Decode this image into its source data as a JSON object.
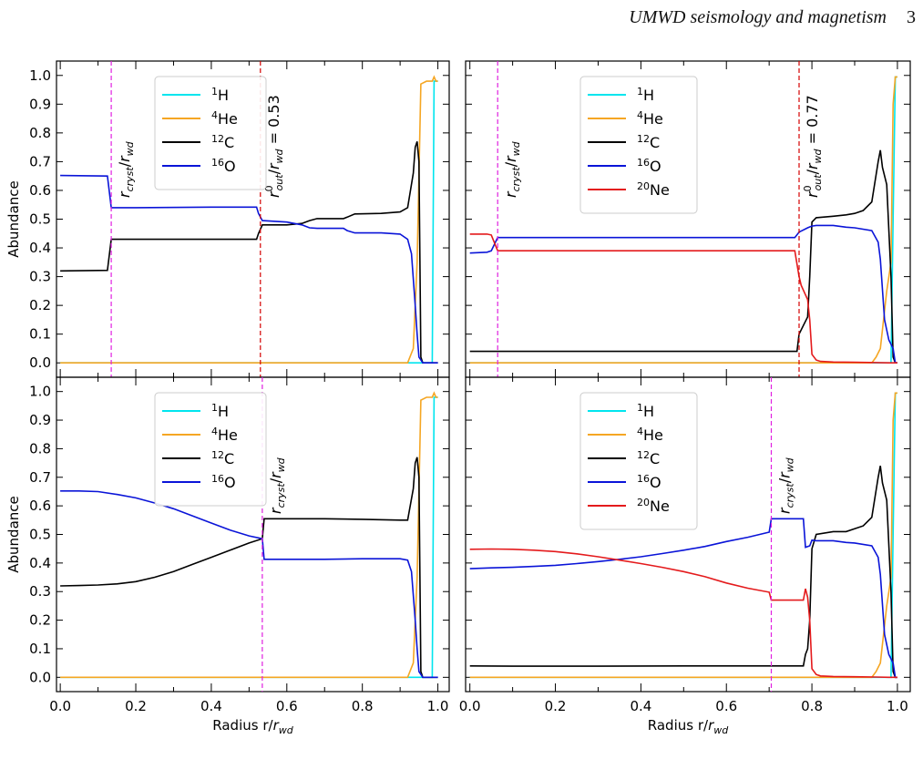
{
  "header": {
    "title": "UMWD seismology and magnetism",
    "page": "3"
  },
  "colors": {
    "H": "#00e5ee",
    "He": "#f5a623",
    "C": "#000000",
    "O": "#0a14d8",
    "Ne": "#e41a1c",
    "rcryst": "#e020e0",
    "rout": "#d40000"
  },
  "chart_data": [
    {
      "type": "line",
      "panel": "top-left",
      "xlabel": "",
      "ylabel": "Abundance",
      "xlim": [
        -0.01,
        1.03
      ],
      "ylim": [
        -0.05,
        1.05
      ],
      "yticks": [
        "0.0",
        "0.1",
        "0.2",
        "0.3",
        "0.4",
        "0.5",
        "0.6",
        "0.7",
        "0.8",
        "0.9",
        "1.0"
      ],
      "xticks": [],
      "legend": [
        "1H",
        "4He",
        "12C",
        "16O"
      ],
      "vlines": [
        {
          "x": 0.135,
          "color": "rcryst",
          "label_sub": "cryst"
        },
        {
          "x": 0.53,
          "color": "rout",
          "label_kind": "rout",
          "value": "0.53"
        }
      ],
      "series": [
        {
          "name": "1H",
          "color": "H",
          "x": [
            0,
            0.96,
            0.975,
            0.978,
            0.985,
            0.99,
            1.0
          ],
          "y": [
            0,
            0,
            0,
            0,
            0,
            0.98,
            0.98
          ]
        },
        {
          "name": "4He",
          "color": "He",
          "x": [
            0,
            0.92,
            0.935,
            0.945,
            0.955,
            0.97,
            0.985,
            0.99,
            0.995,
            1.0
          ],
          "y": [
            0,
            0,
            0.05,
            0.35,
            0.97,
            0.98,
            0.98,
            0.995,
            0.98,
            0.98
          ]
        },
        {
          "name": "12C",
          "color": "C",
          "x": [
            0,
            0.125,
            0.135,
            0.2,
            0.4,
            0.52,
            0.525,
            0.535,
            0.6,
            0.64,
            0.66,
            0.68,
            0.75,
            0.76,
            0.78,
            0.85,
            0.9,
            0.92,
            0.935,
            0.94,
            0.945,
            0.95,
            0.955,
            0.96,
            0.97,
            1.0
          ],
          "y": [
            0.32,
            0.322,
            0.43,
            0.43,
            0.43,
            0.43,
            0.45,
            0.48,
            0.48,
            0.485,
            0.495,
            0.502,
            0.502,
            0.507,
            0.518,
            0.52,
            0.525,
            0.54,
            0.66,
            0.75,
            0.77,
            0.7,
            0.02,
            0,
            0,
            0
          ]
        },
        {
          "name": "16O",
          "color": "O",
          "x": [
            0,
            0.125,
            0.135,
            0.2,
            0.4,
            0.52,
            0.525,
            0.535,
            0.6,
            0.64,
            0.66,
            0.68,
            0.75,
            0.76,
            0.78,
            0.85,
            0.9,
            0.92,
            0.93,
            0.94,
            0.945,
            0.95,
            0.96,
            1.0
          ],
          "y": [
            0.652,
            0.65,
            0.54,
            0.54,
            0.542,
            0.542,
            0.52,
            0.495,
            0.49,
            0.48,
            0.47,
            0.468,
            0.468,
            0.46,
            0.452,
            0.452,
            0.448,
            0.43,
            0.38,
            0.2,
            0.1,
            0.02,
            0,
            0
          ]
        }
      ]
    },
    {
      "type": "line",
      "panel": "top-right",
      "xlabel": "",
      "ylabel": "",
      "xlim": [
        -0.01,
        1.03
      ],
      "ylim": [
        -0.05,
        1.05
      ],
      "yticks": [],
      "xticks": [],
      "legend": [
        "1H",
        "4He",
        "12C",
        "16O",
        "20Ne"
      ],
      "vlines": [
        {
          "x": 0.065,
          "color": "rcryst",
          "label_sub": "cryst"
        },
        {
          "x": 0.77,
          "color": "rout",
          "label_kind": "rout",
          "value": "0.77"
        }
      ],
      "series": [
        {
          "name": "1H",
          "color": "H",
          "x": [
            0,
            0.985,
            0.99,
            0.995,
            1.0
          ],
          "y": [
            0,
            0,
            0.5,
            0.995,
            0.995
          ]
        },
        {
          "name": "4He",
          "color": "He",
          "x": [
            0,
            0.94,
            0.95,
            0.96,
            0.975,
            0.985,
            0.99,
            0.995,
            1.0
          ],
          "y": [
            0,
            0,
            0.02,
            0.05,
            0.25,
            0.35,
            0.9,
            0.995,
            0.995
          ]
        },
        {
          "name": "12C",
          "color": "C",
          "x": [
            0,
            0.765,
            0.77,
            0.78,
            0.79,
            0.795,
            0.8,
            0.81,
            0.85,
            0.88,
            0.9,
            0.92,
            0.94,
            0.955,
            0.96,
            0.965,
            0.975,
            0.985,
            0.99,
            0.995,
            1.0
          ],
          "y": [
            0.04,
            0.04,
            0.1,
            0.13,
            0.16,
            0.3,
            0.49,
            0.505,
            0.51,
            0.515,
            0.52,
            0.53,
            0.56,
            0.7,
            0.74,
            0.68,
            0.62,
            0.3,
            0.02,
            0,
            0
          ]
        },
        {
          "name": "16O",
          "color": "O",
          "x": [
            0,
            0.04,
            0.05,
            0.065,
            0.2,
            0.4,
            0.6,
            0.76,
            0.77,
            0.79,
            0.8,
            0.81,
            0.85,
            0.88,
            0.9,
            0.94,
            0.955,
            0.96,
            0.97,
            0.98,
            0.99,
            0.995,
            1.0
          ],
          "y": [
            0.382,
            0.385,
            0.39,
            0.436,
            0.436,
            0.436,
            0.436,
            0.436,
            0.455,
            0.47,
            0.476,
            0.478,
            0.478,
            0.472,
            0.47,
            0.46,
            0.42,
            0.36,
            0.15,
            0.08,
            0.05,
            0,
            0
          ]
        },
        {
          "name": "20Ne",
          "color": "Ne",
          "x": [
            0,
            0.04,
            0.05,
            0.065,
            0.2,
            0.4,
            0.6,
            0.76,
            0.77,
            0.775,
            0.79,
            0.795,
            0.8,
            0.81,
            0.82,
            0.85,
            0.9,
            0.95,
            0.98,
            1.0
          ],
          "y": [
            0.448,
            0.448,
            0.445,
            0.39,
            0.39,
            0.39,
            0.39,
            0.39,
            0.3,
            0.27,
            0.22,
            0.15,
            0.03,
            0.01,
            0.005,
            0.003,
            0.002,
            0.001,
            0,
            0
          ]
        }
      ]
    },
    {
      "type": "line",
      "panel": "bottom-left",
      "xlabel": "Radius r/r_wd",
      "ylabel": "Abundance",
      "xlim": [
        -0.01,
        1.03
      ],
      "ylim": [
        -0.05,
        1.05
      ],
      "yticks": [
        "0.0",
        "0.1",
        "0.2",
        "0.3",
        "0.4",
        "0.5",
        "0.6",
        "0.7",
        "0.8",
        "0.9",
        "1.0"
      ],
      "xticks": [
        "0.0",
        "0.2",
        "0.4",
        "0.6",
        "0.8",
        "1.0"
      ],
      "legend": [
        "1H",
        "4He",
        "12C",
        "16O"
      ],
      "vlines": [
        {
          "x": 0.535,
          "color": "rcryst",
          "label_sub": "cryst"
        }
      ],
      "series": [
        {
          "name": "1H",
          "color": "H",
          "x": [
            0,
            0.96,
            0.975,
            0.978,
            0.985,
            0.99,
            1.0
          ],
          "y": [
            0,
            0,
            0,
            0,
            0,
            0.98,
            0.98
          ]
        },
        {
          "name": "4He",
          "color": "He",
          "x": [
            0,
            0.92,
            0.935,
            0.945,
            0.955,
            0.97,
            0.985,
            0.99,
            0.995,
            1.0
          ],
          "y": [
            0,
            0,
            0.05,
            0.35,
            0.97,
            0.98,
            0.98,
            0.995,
            0.98,
            0.98
          ]
        },
        {
          "name": "12C",
          "color": "C",
          "x": [
            0,
            0.05,
            0.1,
            0.15,
            0.2,
            0.25,
            0.3,
            0.35,
            0.4,
            0.45,
            0.5,
            0.535,
            0.54,
            0.6,
            0.7,
            0.8,
            0.9,
            0.92,
            0.935,
            0.94,
            0.945,
            0.95,
            0.955,
            0.96,
            0.97,
            1.0
          ],
          "y": [
            0.32,
            0.321,
            0.323,
            0.327,
            0.335,
            0.35,
            0.37,
            0.395,
            0.42,
            0.445,
            0.47,
            0.485,
            0.555,
            0.555,
            0.555,
            0.553,
            0.55,
            0.55,
            0.66,
            0.75,
            0.77,
            0.7,
            0.02,
            0,
            0,
            0
          ]
        },
        {
          "name": "16O",
          "color": "O",
          "x": [
            0,
            0.05,
            0.1,
            0.15,
            0.2,
            0.25,
            0.3,
            0.35,
            0.4,
            0.45,
            0.5,
            0.535,
            0.54,
            0.6,
            0.7,
            0.8,
            0.9,
            0.92,
            0.93,
            0.94,
            0.945,
            0.95,
            0.96,
            1.0
          ],
          "y": [
            0.652,
            0.652,
            0.65,
            0.64,
            0.628,
            0.61,
            0.59,
            0.565,
            0.54,
            0.515,
            0.495,
            0.485,
            0.413,
            0.413,
            0.413,
            0.415,
            0.415,
            0.41,
            0.37,
            0.2,
            0.1,
            0.02,
            0,
            0
          ]
        }
      ]
    },
    {
      "type": "line",
      "panel": "bottom-right",
      "xlabel": "Radius r/r_wd",
      "ylabel": "",
      "xlim": [
        -0.01,
        1.03
      ],
      "ylim": [
        -0.05,
        1.05
      ],
      "yticks": [],
      "xticks": [
        "0.0",
        "0.2",
        "0.4",
        "0.6",
        "0.8",
        "1.0"
      ],
      "legend": [
        "1H",
        "4He",
        "12C",
        "16O",
        "20Ne"
      ],
      "vlines": [
        {
          "x": 0.705,
          "color": "rcryst",
          "label_sub": "cryst"
        }
      ],
      "series": [
        {
          "name": "1H",
          "color": "H",
          "x": [
            0,
            0.985,
            0.99,
            0.995,
            1.0
          ],
          "y": [
            0,
            0,
            0.5,
            0.995,
            0.995
          ]
        },
        {
          "name": "4He",
          "color": "He",
          "x": [
            0,
            0.94,
            0.95,
            0.96,
            0.975,
            0.985,
            0.99,
            0.995,
            1.0
          ],
          "y": [
            0,
            0,
            0.02,
            0.05,
            0.25,
            0.35,
            0.9,
            0.995,
            0.995
          ]
        },
        {
          "name": "12C",
          "color": "C",
          "x": [
            0,
            0.1,
            0.3,
            0.5,
            0.7,
            0.78,
            0.785,
            0.79,
            0.795,
            0.8,
            0.81,
            0.85,
            0.88,
            0.9,
            0.92,
            0.94,
            0.955,
            0.96,
            0.965,
            0.975,
            0.985,
            0.99,
            0.995,
            1.0
          ],
          "y": [
            0.04,
            0.039,
            0.039,
            0.04,
            0.04,
            0.04,
            0.08,
            0.1,
            0.2,
            0.45,
            0.5,
            0.51,
            0.51,
            0.52,
            0.53,
            0.56,
            0.7,
            0.74,
            0.68,
            0.62,
            0.3,
            0.02,
            0,
            0
          ]
        },
        {
          "name": "16O",
          "color": "O",
          "x": [
            0,
            0.05,
            0.1,
            0.15,
            0.2,
            0.25,
            0.3,
            0.35,
            0.4,
            0.45,
            0.5,
            0.55,
            0.6,
            0.65,
            0.7,
            0.705,
            0.78,
            0.785,
            0.795,
            0.8,
            0.81,
            0.85,
            0.88,
            0.9,
            0.94,
            0.955,
            0.96,
            0.97,
            0.98,
            0.99,
            0.995,
            1.0
          ],
          "y": [
            0.38,
            0.383,
            0.385,
            0.388,
            0.392,
            0.398,
            0.405,
            0.413,
            0.422,
            0.433,
            0.445,
            0.458,
            0.475,
            0.49,
            0.508,
            0.555,
            0.555,
            0.455,
            0.46,
            0.48,
            0.478,
            0.478,
            0.472,
            0.47,
            0.46,
            0.42,
            0.36,
            0.15,
            0.08,
            0.05,
            0,
            0
          ]
        },
        {
          "name": "20Ne",
          "color": "Ne",
          "x": [
            0,
            0.05,
            0.1,
            0.15,
            0.2,
            0.25,
            0.3,
            0.35,
            0.4,
            0.45,
            0.5,
            0.55,
            0.6,
            0.65,
            0.7,
            0.705,
            0.78,
            0.785,
            0.79,
            0.795,
            0.8,
            0.81,
            0.82,
            0.85,
            0.9,
            0.95,
            0.98,
            1.0
          ],
          "y": [
            0.448,
            0.449,
            0.448,
            0.445,
            0.44,
            0.432,
            0.422,
            0.41,
            0.398,
            0.385,
            0.37,
            0.352,
            0.33,
            0.312,
            0.298,
            0.27,
            0.27,
            0.31,
            0.28,
            0.2,
            0.03,
            0.01,
            0.005,
            0.003,
            0.002,
            0.001,
            0,
            0
          ]
        }
      ]
    }
  ]
}
